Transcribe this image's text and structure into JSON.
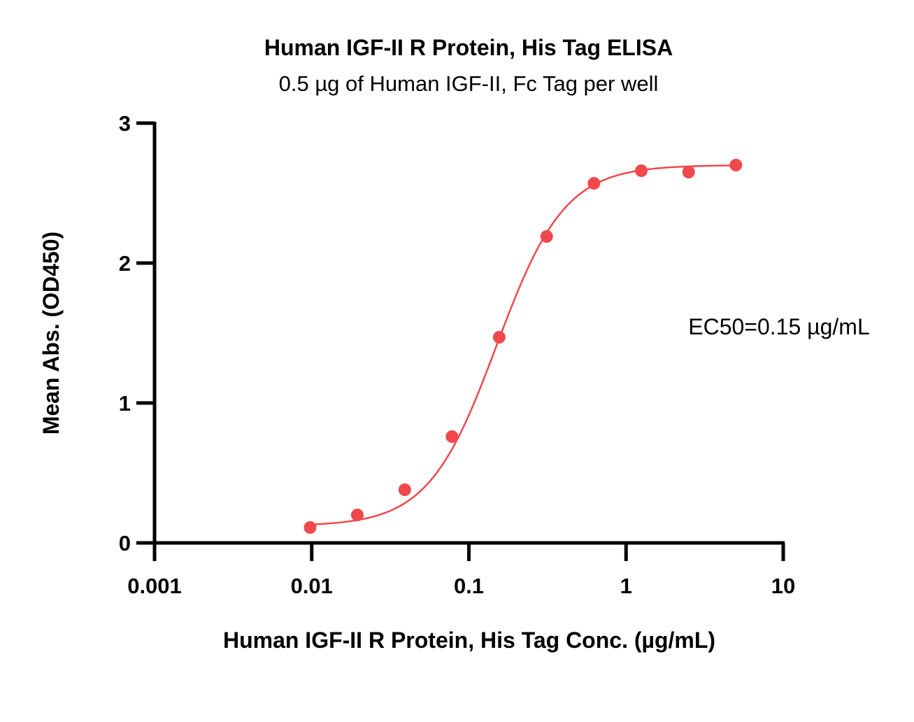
{
  "chart_data": {
    "type": "scatter",
    "title": "Human IGF-II R Protein, His Tag ELISA",
    "subtitle": "0.5 µg of Human IGF-II, Fc Tag per well",
    "xlabel": "Human IGF-II R Protein, His Tag Conc. (µg/mL)",
    "ylabel": "Mean Abs. (OD450)",
    "x_scale": "log",
    "xlim": [
      0.001,
      10
    ],
    "ylim": [
      0,
      3
    ],
    "x_ticks": [
      {
        "value": 0.001,
        "label": "0.001"
      },
      {
        "value": 0.01,
        "label": "0.01"
      },
      {
        "value": 0.1,
        "label": "0.1"
      },
      {
        "value": 1,
        "label": "1"
      },
      {
        "value": 10,
        "label": "10"
      }
    ],
    "y_ticks": [
      {
        "value": 0,
        "label": "0"
      },
      {
        "value": 1,
        "label": "1"
      },
      {
        "value": 2,
        "label": "2"
      },
      {
        "value": 3,
        "label": "3"
      }
    ],
    "grid": false,
    "series": [
      {
        "color": "#f0484b",
        "points": [
          {
            "x": 0.00977,
            "y": 0.11
          },
          {
            "x": 0.0195,
            "y": 0.2
          },
          {
            "x": 0.0391,
            "y": 0.38
          },
          {
            "x": 0.0781,
            "y": 0.76
          },
          {
            "x": 0.156,
            "y": 1.47
          },
          {
            "x": 0.3125,
            "y": 2.19
          },
          {
            "x": 0.625,
            "y": 2.57
          },
          {
            "x": 1.25,
            "y": 2.66
          },
          {
            "x": 2.5,
            "y": 2.65
          },
          {
            "x": 5,
            "y": 2.7
          }
        ],
        "fit": {
          "model": "4PL",
          "bottom": 0.12,
          "top": 2.7,
          "ec50": 0.15,
          "hill": 2.0
        }
      }
    ],
    "annotations": [
      {
        "text": "EC50=0.15 µg/mL"
      }
    ]
  }
}
